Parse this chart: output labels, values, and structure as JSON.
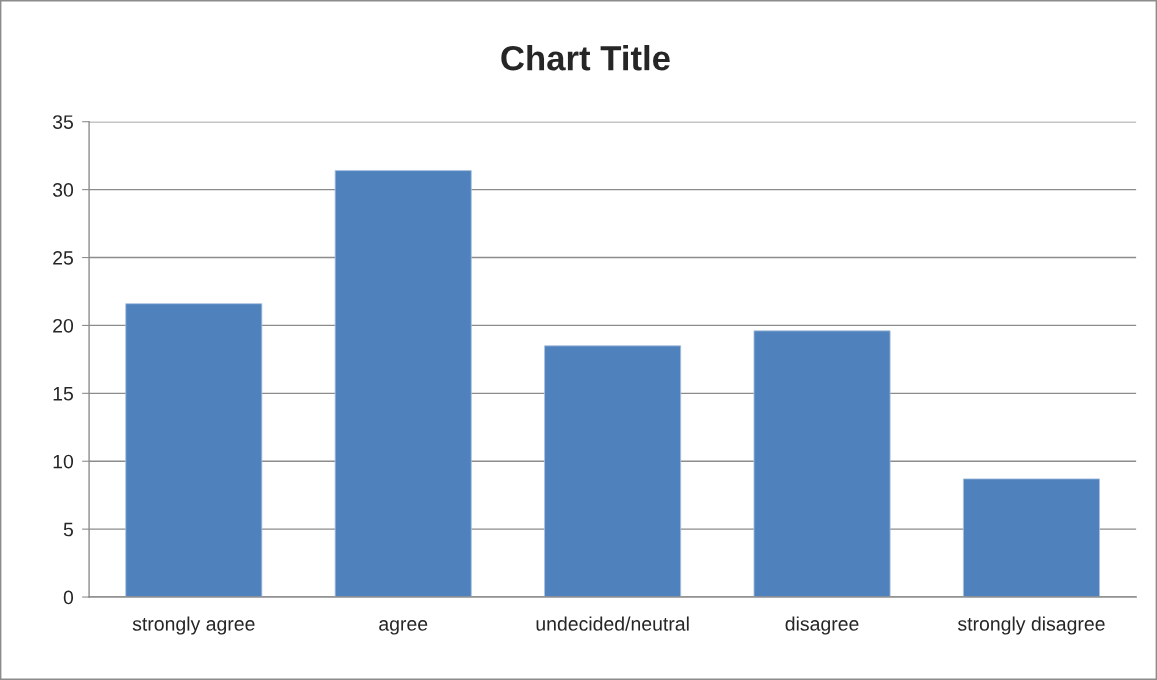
{
  "chart_data": {
    "type": "bar",
    "title": "Chart Title",
    "categories": [
      "strongly agree",
      "agree",
      "undecided/neutral",
      "disagree",
      "strongly disagree"
    ],
    "values": [
      21.6,
      31.4,
      18.5,
      19.6,
      8.7
    ],
    "color": "#4f81bd",
    "ylim": [
      0,
      35
    ],
    "yticks": [
      0,
      5,
      10,
      15,
      20,
      25,
      30,
      35
    ],
    "grid": "y",
    "legend": false
  }
}
